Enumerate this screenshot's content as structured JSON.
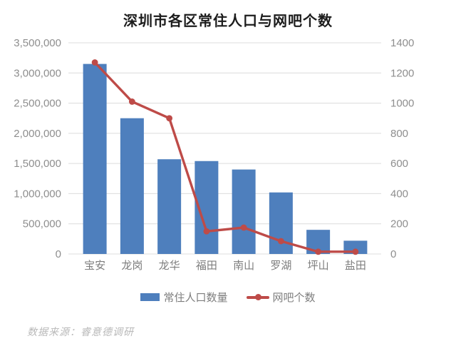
{
  "title": "深圳市各区常住人口与网吧个数",
  "footer": {
    "source_text": "数据来源：睿意德调研"
  },
  "colors": {
    "bar": "#4e7fbd",
    "line": "#be4b48",
    "grid": "#dcdcdc",
    "tick_text": "#8e8e8e",
    "title_text": "#1c1c1c",
    "footer_text": "#b9b9b9"
  },
  "chart_data": {
    "type": "bar+line",
    "categories": [
      "宝安",
      "龙岗",
      "龙华",
      "福田",
      "南山",
      "罗湖",
      "坪山",
      "盐田"
    ],
    "series": [
      {
        "name": "常住人口数量",
        "type": "bar",
        "axis": "left",
        "values": [
          3150000,
          2250000,
          1570000,
          1540000,
          1400000,
          1020000,
          400000,
          220000
        ]
      },
      {
        "name": "网吧个数",
        "type": "line",
        "axis": "right",
        "values": [
          1270,
          1010,
          900,
          150,
          175,
          85,
          15,
          15
        ]
      }
    ],
    "left_axis": {
      "min": 0,
      "max": 3500000,
      "step": 500000,
      "tick_labels_top_down": [
        "3,500,000",
        "3,000,000",
        "2,500,000",
        "2,000,000",
        "1,500,000",
        "1,000,000",
        "500,000",
        "0"
      ]
    },
    "right_axis": {
      "min": 0,
      "max": 1400,
      "step": 200,
      "tick_labels_top_down": [
        "1400",
        "1200",
        "1000",
        "800",
        "600",
        "400",
        "200",
        "0"
      ]
    },
    "grid": true,
    "legend_position": "bottom"
  }
}
